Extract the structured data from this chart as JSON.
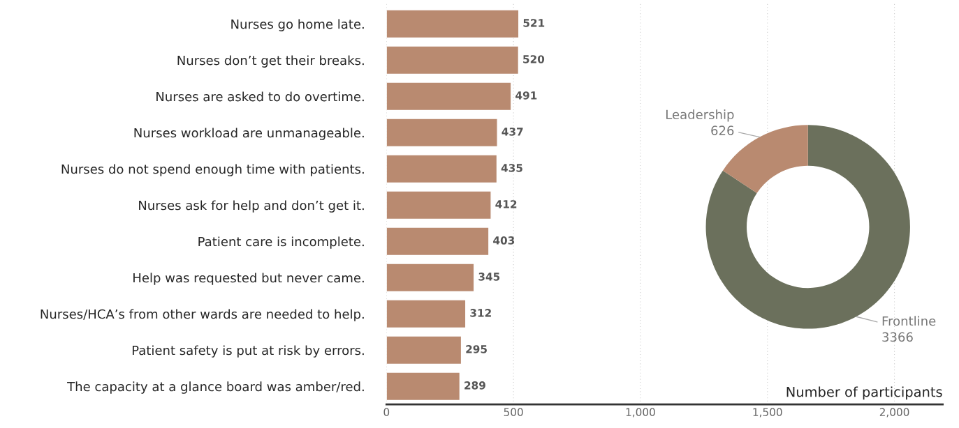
{
  "chart_data": [
    {
      "type": "bar",
      "orientation": "horizontal",
      "xlabel": "Number of participants",
      "categories": [
        "Nurses go home late.",
        "Nurses don’t get their breaks.",
        "Nurses are asked to do overtime.",
        "Nurses workload are unmanageable.",
        "Nurses do not spend enough time with patients.",
        "Nurses ask for help and don’t get it.",
        "Patient care is incomplete.",
        "Help was requested but never came.",
        "Nurses/HCA’s from other wards are needed to help.",
        "Patient safety is put at risk by errors.",
        "The capacity at a glance board was amber/red."
      ],
      "values": [
        521,
        520,
        491,
        437,
        435,
        412,
        403,
        345,
        312,
        295,
        289
      ],
      "color": "#b98a70",
      "data_labels": true,
      "grid": "x",
      "xlim": [
        0,
        2190
      ],
      "xticks": [
        0,
        500,
        {
          "value": 1000,
          "label": "1,000"
        },
        {
          "value": 1500,
          "label": "1,500"
        },
        {
          "value": 2000,
          "label": "2,000"
        }
      ]
    },
    {
      "type": "donut",
      "categories": [
        "Frontline",
        "Leadership"
      ],
      "values": [
        3366,
        626
      ],
      "colors": [
        "#6b705c",
        "#b98a70"
      ],
      "data_labels": true
    }
  ]
}
